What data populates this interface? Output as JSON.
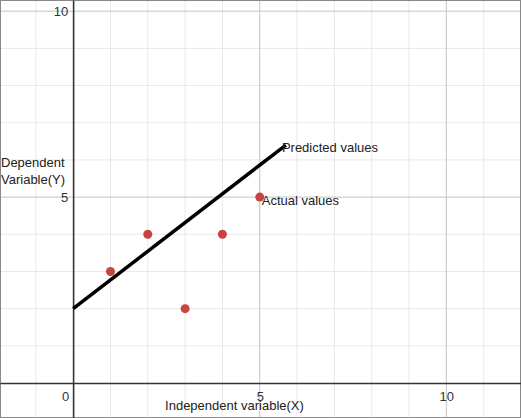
{
  "chart_data": {
    "type": "scatter",
    "xlabel": "Independent variable(X)",
    "ylabel": "Dependent Variable(Y)",
    "xlim": [
      -1.96,
      12
    ],
    "ylim": [
      -0.94,
      10.3
    ],
    "xticks": [
      0,
      5,
      10
    ],
    "yticks": [
      5,
      10
    ],
    "grid": true,
    "series": [
      {
        "name": "Predicted values",
        "type": "line",
        "color": "#000000",
        "x": [
          0,
          5.7
        ],
        "values": [
          2,
          6.4
        ]
      },
      {
        "name": "Actual values",
        "type": "scatter",
        "marker": "circle",
        "color": "#c74440",
        "x": [
          1,
          2,
          3,
          4,
          5
        ],
        "values": [
          3,
          4,
          2,
          4,
          5
        ]
      }
    ]
  }
}
